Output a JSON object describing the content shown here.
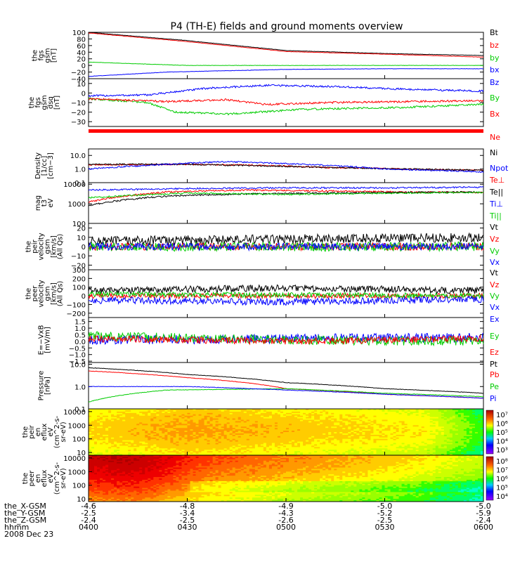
{
  "title": "P4 (TH-E) fields and ground moments overview",
  "colors": {
    "black": "#000000",
    "red": "#ff0000",
    "green": "#00cc00",
    "blue": "#0000ff"
  },
  "x_ticks": [
    "0400",
    "0430",
    "0500",
    "0530",
    "0600"
  ],
  "ephemeris": {
    "rows": [
      {
        "label": "the_X-GSM",
        "values": [
          "-4.6",
          "-4.8",
          "-4.9",
          "-5.0",
          "-5.0"
        ]
      },
      {
        "label": "the_Y-GSM",
        "values": [
          "-2.5",
          "-3.4",
          "-4.3",
          "-5.2",
          "-5.9"
        ]
      },
      {
        "label": "the_Z-GSM",
        "values": [
          "-2.4",
          "-2.5",
          "-2.6",
          "-2.5",
          "-2.4"
        ]
      },
      {
        "label": "hhmm",
        "values": []
      },
      {
        "label": "2008 Dec 23",
        "values": []
      }
    ]
  },
  "chart_data": [
    {
      "type": "line",
      "ylabel": [
        "the",
        "fgs",
        "gsm",
        "[nT]"
      ],
      "ylim": [
        -40,
        100
      ],
      "log": false,
      "ticks": [
        "100",
        "80",
        "60",
        "40",
        "20",
        "0",
        "−20",
        "−40"
      ],
      "tick_values": [
        100,
        80,
        60,
        40,
        20,
        0,
        -20,
        -40
      ],
      "series": [
        {
          "name": "Bt",
          "color": "black",
          "points": [
            [
              0,
              100
            ],
            [
              0.25,
              75
            ],
            [
              0.5,
              45
            ],
            [
              0.75,
              36
            ],
            [
              1,
              30
            ]
          ],
          "noise": 0.5
        },
        {
          "name": "bz",
          "color": "red",
          "points": [
            [
              0,
              98
            ],
            [
              0.25,
              72
            ],
            [
              0.5,
              42
            ],
            [
              0.75,
              34
            ],
            [
              1,
              25
            ]
          ],
          "noise": 0.5
        },
        {
          "name": "by",
          "color": "green",
          "points": [
            [
              0,
              10
            ],
            [
              0.25,
              0
            ],
            [
              0.5,
              0
            ],
            [
              0.75,
              0
            ],
            [
              1,
              0
            ]
          ],
          "noise": 0.5
        },
        {
          "name": "bx",
          "color": "blue",
          "points": [
            [
              0,
              -33
            ],
            [
              0.2,
              -20
            ],
            [
              0.5,
              -12
            ],
            [
              0.75,
              -10
            ],
            [
              1,
              -10
            ]
          ],
          "noise": 0.5
        }
      ]
    },
    {
      "type": "line",
      "ylabel": [
        "the",
        "fgs",
        "gsm",
        "dsq",
        "[nT]"
      ],
      "ylim": [
        -35,
        15
      ],
      "log": false,
      "ticks": [
        "10",
        "0",
        "−10",
        "−20",
        "−30"
      ],
      "tick_values": [
        10,
        0,
        -10,
        -20,
        -30
      ],
      "series": [
        {
          "name": "Bz",
          "color": "blue",
          "points": [
            [
              0,
              -3
            ],
            [
              0.15,
              -2
            ],
            [
              0.3,
              5
            ],
            [
              0.45,
              8
            ],
            [
              0.6,
              7
            ],
            [
              0.8,
              4
            ],
            [
              1,
              2
            ]
          ],
          "noise": 1
        },
        {
          "name": "By",
          "color": "green",
          "points": [
            [
              0,
              -6
            ],
            [
              0.15,
              -10
            ],
            [
              0.22,
              -20
            ],
            [
              0.35,
              -22
            ],
            [
              0.55,
              -17
            ],
            [
              0.8,
              -15
            ],
            [
              1,
              -12
            ]
          ],
          "noise": 1
        },
        {
          "name": "Bx",
          "color": "red",
          "points": [
            [
              0,
              -6
            ],
            [
              0.2,
              -9
            ],
            [
              0.35,
              -7
            ],
            [
              0.45,
              -12
            ],
            [
              0.6,
              -10
            ],
            [
              0.8,
              -9
            ],
            [
              1,
              -8
            ]
          ],
          "noise": 1
        }
      ]
    },
    {
      "type": "line",
      "ylabel": [
        "Density",
        "[1/cc]",
        "[cm−3]"
      ],
      "ylim": [
        0.1,
        30
      ],
      "log": true,
      "ticks": [
        "10.0",
        "1.0",
        "0.1"
      ],
      "tick_values": [
        10,
        1,
        0.1
      ],
      "series": [
        {
          "name": "Ne",
          "color": "red",
          "points": [
            [
              0,
              2
            ],
            [
              0.2,
              2.2
            ],
            [
              0.4,
              2
            ],
            [
              0.6,
              1.3
            ],
            [
              0.8,
              1
            ],
            [
              1,
              0.8
            ]
          ],
          "noise": 0.05
        },
        {
          "name": "Ni",
          "color": "black",
          "points": [
            [
              0,
              2.2
            ],
            [
              0.2,
              2.3
            ],
            [
              0.4,
              1.8
            ],
            [
              0.6,
              1.3
            ],
            [
              0.8,
              1
            ],
            [
              1,
              0.8
            ]
          ],
          "noise": 0.05
        },
        {
          "name": "Npot",
          "color": "blue",
          "points": [
            [
              0,
              1
            ],
            [
              0.15,
              1.8
            ],
            [
              0.35,
              3.5
            ],
            [
              0.5,
              2.5
            ],
            [
              0.75,
              1
            ],
            [
              1,
              0.6
            ]
          ],
          "noise": 0.05
        }
      ]
    },
    {
      "type": "line",
      "ylabel": [
        "mag",
        "t3",
        "eV"
      ],
      "ylim": [
        100,
        12000
      ],
      "log": true,
      "ticks": [
        "10000",
        "1000",
        "100"
      ],
      "tick_values": [
        10000,
        1000,
        100
      ],
      "series": [
        {
          "name": "Te⊥",
          "color": "red",
          "points": [
            [
              0,
              1200
            ],
            [
              0.2,
              4000
            ],
            [
              0.4,
              5000
            ],
            [
              0.6,
              4500
            ],
            [
              0.8,
              4000
            ],
            [
              1,
              3800
            ]
          ],
          "noise": 0.04
        },
        {
          "name": "Te||",
          "color": "black",
          "points": [
            [
              0,
              800
            ],
            [
              0.2,
              2500
            ],
            [
              0.4,
              3200
            ],
            [
              0.6,
              3500
            ],
            [
              0.8,
              3800
            ],
            [
              1,
              4000
            ]
          ],
          "noise": 0.04
        },
        {
          "name": "Ti⊥",
          "color": "blue",
          "points": [
            [
              0,
              5000
            ],
            [
              0.25,
              6000
            ],
            [
              0.5,
              6500
            ],
            [
              0.75,
              6500
            ],
            [
              1,
              7000
            ]
          ],
          "noise": 0.04
        },
        {
          "name": "Ti||",
          "color": "green",
          "points": [
            [
              0,
              2000
            ],
            [
              0.25,
              3500
            ],
            [
              0.5,
              3000
            ],
            [
              0.75,
              3500
            ],
            [
              1,
              3800
            ]
          ],
          "noise": 0.04
        }
      ]
    },
    {
      "type": "line",
      "ylabel": [
        "the",
        "peir",
        "velocity",
        "gsm",
        "[km/s]",
        "(All Qs)"
      ],
      "ylim": [
        -25,
        25
      ],
      "log": false,
      "ticks": [
        "20",
        "10",
        "0",
        "−10",
        "−20"
      ],
      "tick_values": [
        20,
        10,
        0,
        -10,
        -20
      ],
      "series": [
        {
          "name": "Vt",
          "color": "black",
          "points": [
            [
              0,
              6
            ],
            [
              0.5,
              8
            ],
            [
              1,
              10
            ]
          ],
          "noise": 5
        },
        {
          "name": "Vz",
          "color": "red",
          "points": [
            [
              0,
              0
            ],
            [
              1,
              0
            ]
          ],
          "noise": 4
        },
        {
          "name": "Vy",
          "color": "green",
          "points": [
            [
              0,
              0
            ],
            [
              1,
              0
            ]
          ],
          "noise": 5
        },
        {
          "name": "Vx",
          "color": "blue",
          "points": [
            [
              0,
              0
            ],
            [
              1,
              0
            ]
          ],
          "noise": 4
        }
      ]
    },
    {
      "type": "line",
      "ylabel": [
        "the",
        "peer",
        "velocity",
        "gsm",
        "[km/s]",
        "(All Qs)"
      ],
      "ylim": [
        -250,
        300
      ],
      "log": false,
      "ticks": [
        "300",
        "200",
        "100",
        "0",
        "−100",
        "−200"
      ],
      "tick_values": [
        300,
        200,
        100,
        0,
        -100,
        -200
      ],
      "series": [
        {
          "name": "Vt",
          "color": "black",
          "points": [
            [
              0,
              60
            ],
            [
              0.5,
              90
            ],
            [
              1,
              60
            ]
          ],
          "noise": 40
        },
        {
          "name": "Vz",
          "color": "red",
          "points": [
            [
              0,
              0
            ],
            [
              1,
              0
            ]
          ],
          "noise": 30
        },
        {
          "name": "Vy",
          "color": "green",
          "points": [
            [
              0,
              20
            ],
            [
              1,
              0
            ]
          ],
          "noise": 30
        },
        {
          "name": "Vx",
          "color": "blue",
          "points": [
            [
              0,
              -50
            ],
            [
              0.5,
              -70
            ],
            [
              1,
              -40
            ]
          ],
          "noise": 40
        }
      ]
    },
    {
      "type": "line",
      "ylabel": [
        "E=−VxB",
        "[mV/m]"
      ],
      "ylim": [
        -1.6,
        1.8
      ],
      "log": false,
      "ticks": [
        "1.5",
        "1.0",
        "0.5",
        "0.0",
        "−0.5",
        "−1.0",
        "−1.5"
      ],
      "tick_values": [
        1.5,
        1,
        0.5,
        0,
        -0.5,
        -1,
        -1.5
      ],
      "series": [
        {
          "name": "Ex",
          "color": "blue",
          "points": [
            [
              0,
              0.1
            ],
            [
              0.5,
              0.2
            ],
            [
              1,
              0.3
            ]
          ],
          "noise": 0.35
        },
        {
          "name": "Ey",
          "color": "green",
          "points": [
            [
              0,
              0.4
            ],
            [
              0.5,
              0.1
            ],
            [
              1,
              0
            ]
          ],
          "noise": 0.35
        },
        {
          "name": "Ez",
          "color": "red",
          "points": [
            [
              0,
              0.2
            ],
            [
              0.5,
              0
            ],
            [
              1,
              0.2
            ]
          ],
          "noise": 0.25
        }
      ]
    },
    {
      "type": "line",
      "ylabel": [
        "Pressure",
        "[nPa]"
      ],
      "ylim": [
        0.1,
        12
      ],
      "log": true,
      "ticks": [
        "10.0",
        "1.0",
        "0.1"
      ],
      "tick_values": [
        10,
        1,
        0.1
      ],
      "series": [
        {
          "name": "Pt",
          "color": "black",
          "points": [
            [
              0,
              7
            ],
            [
              0.25,
              3.5
            ],
            [
              0.5,
              1.5
            ],
            [
              0.75,
              0.8
            ],
            [
              1,
              0.5
            ]
          ],
          "noise": 0.01
        },
        {
          "name": "Pb",
          "color": "red",
          "points": [
            [
              0,
              5
            ],
            [
              0.25,
              2.5
            ],
            [
              0.5,
              0.8
            ],
            [
              0.75,
              0.45
            ],
            [
              1,
              0.3
            ]
          ],
          "noise": 0.01
        },
        {
          "name": "Pe",
          "color": "green",
          "points": [
            [
              0,
              0.2
            ],
            [
              0.2,
              0.7
            ],
            [
              0.5,
              0.8
            ],
            [
              0.75,
              0.5
            ],
            [
              1,
              0.35
            ]
          ],
          "noise": 0.01
        },
        {
          "name": "Pi",
          "color": "blue",
          "points": [
            [
              0,
              1
            ],
            [
              0.25,
              1
            ],
            [
              0.5,
              0.7
            ],
            [
              0.75,
              0.45
            ],
            [
              1,
              0.3
            ]
          ],
          "noise": 0.01
        }
      ]
    },
    {
      "type": "heatmap",
      "ylabel": [
        "the",
        "peir",
        "en",
        "eflux",
        "eV",
        "(cm^2-s-",
        "sr-eV)"
      ],
      "ticks": [
        "10000",
        "1000",
        "100",
        "10"
      ],
      "tick_values": [
        10000,
        1000,
        100,
        10
      ],
      "colorbar_ticks": [
        "10⁷",
        "10⁶",
        "10⁵",
        "10⁴",
        "10³"
      ],
      "profile": [
        [
          0,
          0.55
        ],
        [
          0.25,
          0.62
        ],
        [
          0.5,
          0.58
        ],
        [
          0.85,
          0.52
        ],
        [
          1,
          0.3
        ]
      ]
    },
    {
      "type": "heatmap",
      "ylabel": [
        "the",
        "peer",
        "en",
        "eflux",
        "eV",
        "(cm^2-s-",
        "sr-eV)"
      ],
      "ticks": [
        "10000",
        "1000",
        "100",
        "10"
      ],
      "tick_values": [
        10000,
        1000,
        100,
        10
      ],
      "colorbar_ticks": [
        "10⁸",
        "10⁷",
        "10⁶",
        "10⁵",
        "10⁴"
      ],
      "profile": [
        [
          0,
          0.95
        ],
        [
          0.12,
          0.97
        ],
        [
          0.3,
          0.8
        ],
        [
          0.5,
          0.72
        ],
        [
          0.8,
          0.62
        ],
        [
          1,
          0.5
        ]
      ]
    }
  ]
}
